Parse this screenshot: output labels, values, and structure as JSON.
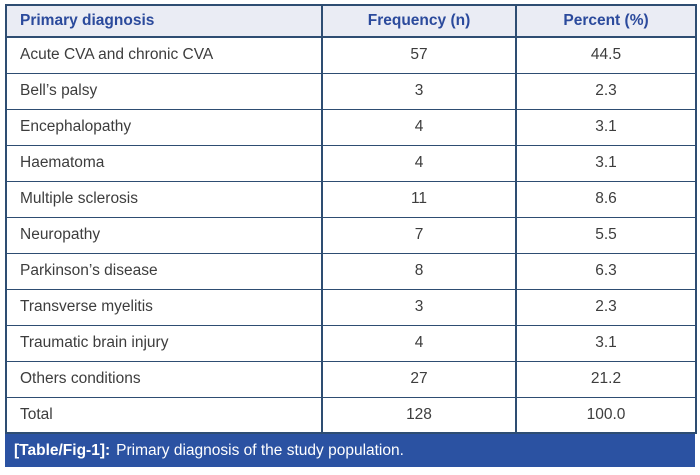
{
  "chart_data": {
    "type": "table",
    "columns": [
      "Primary diagnosis",
      "Frequency (n)",
      "Percent (%)"
    ],
    "rows": [
      [
        "Acute CVA and chronic CVA",
        "57",
        "44.5"
      ],
      [
        "Bell’s palsy",
        "3",
        "2.3"
      ],
      [
        "Encephalopathy",
        "4",
        "3.1"
      ],
      [
        "Haematoma",
        "4",
        "3.1"
      ],
      [
        "Multiple sclerosis",
        "11",
        "8.6"
      ],
      [
        "Neuropathy",
        "7",
        "5.5"
      ],
      [
        "Parkinson’s disease",
        "8",
        "6.3"
      ],
      [
        "Transverse myelitis",
        "3",
        "2.3"
      ],
      [
        "Traumatic brain injury",
        "4",
        "3.1"
      ],
      [
        "Others conditions",
        "27",
        "21.2"
      ],
      [
        "Total",
        "128",
        "100.0"
      ]
    ],
    "title": "[Table/Fig-1]: Primary diagnosis of the study population."
  },
  "caption": {
    "label": "[Table/Fig-1]:",
    "text": "Primary diagnosis of the study population."
  },
  "colors": {
    "border-navy": "#2e4d72",
    "header-bg": "#eaecf4",
    "header-text": "#2b4a9c",
    "footer-bg": "#2b52a2",
    "body-text": "#3d3d3d",
    "page-bg": "#ffffff"
  }
}
